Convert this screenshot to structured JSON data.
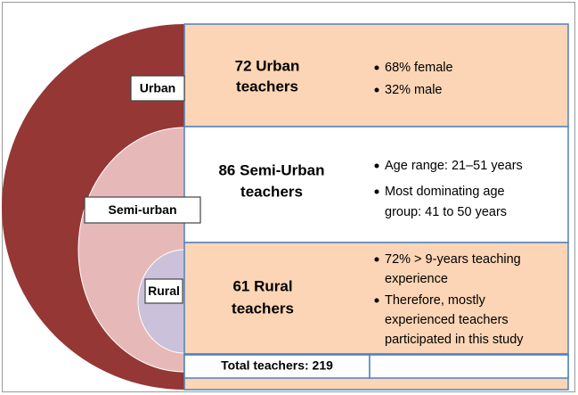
{
  "groups": [
    {
      "label": "Urban",
      "heading": [
        "72 Urban",
        "teachers"
      ],
      "bullets": [
        [
          "68% female"
        ],
        [
          "32% male"
        ]
      ]
    },
    {
      "label": "Semi-urban",
      "heading": [
        "86 Semi-Urban",
        "teachers"
      ],
      "bullets": [
        [
          "Age range: 21–51 years"
        ],
        [
          "Most dominating age",
          "group: 41 to 50 years"
        ]
      ]
    },
    {
      "label": "Rural",
      "heading": [
        "61 Rural",
        "teachers"
      ],
      "bullets": [
        [
          "72% > 9-years teaching",
          "experience"
        ],
        [
          "Therefore, mostly",
          "experienced teachers",
          "participated in this study"
        ]
      ]
    }
  ],
  "total": "Total teachers: 219"
}
